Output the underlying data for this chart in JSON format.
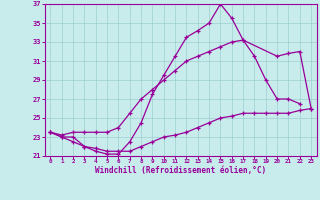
{
  "xlabel": "Windchill (Refroidissement éolien,°C)",
  "xlim": [
    -0.5,
    23.5
  ],
  "ylim": [
    21,
    37
  ],
  "xticks": [
    0,
    1,
    2,
    3,
    4,
    5,
    6,
    7,
    8,
    9,
    10,
    11,
    12,
    13,
    14,
    15,
    16,
    17,
    18,
    19,
    20,
    21,
    22,
    23
  ],
  "yticks": [
    21,
    23,
    25,
    27,
    29,
    31,
    33,
    35,
    37
  ],
  "bg_color": "#c8ecec",
  "line_color": "#990099",
  "grid_color": "#9ecece",
  "curve1_x": [
    0,
    1,
    2,
    3,
    4,
    5,
    6,
    7,
    8,
    9,
    10,
    11,
    12,
    13,
    14,
    15,
    16,
    17,
    18,
    19,
    20,
    21,
    22
  ],
  "curve1_y": [
    23.5,
    23.0,
    23.0,
    22.0,
    21.5,
    21.2,
    21.2,
    22.5,
    24.5,
    27.5,
    29.5,
    31.5,
    33.5,
    34.2,
    35.0,
    37.0,
    35.5,
    33.2,
    31.5,
    29.0,
    27.0,
    27.0,
    26.5
  ],
  "curve2_x": [
    0,
    1,
    2,
    3,
    4,
    5,
    6,
    7,
    8,
    9,
    10,
    11,
    12,
    13,
    14,
    15,
    16,
    17,
    20,
    21,
    22,
    23
  ],
  "curve2_y": [
    23.5,
    23.2,
    23.5,
    23.5,
    23.5,
    23.5,
    24.0,
    25.5,
    27.0,
    28.0,
    29.0,
    30.0,
    31.0,
    31.5,
    32.0,
    32.5,
    33.0,
    33.2,
    31.5,
    31.8,
    32.0,
    26.0
  ],
  "curve3_x": [
    0,
    1,
    2,
    3,
    4,
    5,
    6,
    7,
    8,
    9,
    10,
    11,
    12,
    13,
    14,
    15,
    16,
    17,
    18,
    19,
    20,
    21,
    22,
    23
  ],
  "curve3_y": [
    23.5,
    23.0,
    22.5,
    22.0,
    21.8,
    21.5,
    21.5,
    21.5,
    22.0,
    22.5,
    23.0,
    23.2,
    23.5,
    24.0,
    24.5,
    25.0,
    25.2,
    25.5,
    25.5,
    25.5,
    25.5,
    25.5,
    25.8,
    26.0
  ]
}
